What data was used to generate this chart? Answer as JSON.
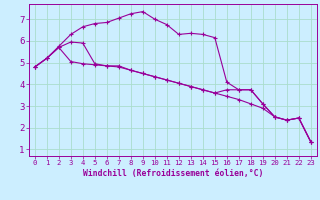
{
  "xlabel": "Windchill (Refroidissement éolien,°C)",
  "bg_color": "#cceeff",
  "line_color": "#990099",
  "grid_color": "#aaddcc",
  "xlim": [
    -0.5,
    23.5
  ],
  "ylim": [
    0.7,
    7.7
  ],
  "yticks": [
    1,
    2,
    3,
    4,
    5,
    6,
    7
  ],
  "xticks": [
    0,
    1,
    2,
    3,
    4,
    5,
    6,
    7,
    8,
    9,
    10,
    11,
    12,
    13,
    14,
    15,
    16,
    17,
    18,
    19,
    20,
    21,
    22,
    23
  ],
  "lines": [
    [
      0,
      4.8,
      1,
      5.2,
      2,
      5.75,
      3,
      6.3,
      4,
      6.65,
      5,
      6.8,
      6,
      6.85,
      7,
      7.05,
      8,
      7.25,
      9,
      7.35,
      10,
      7.0,
      11,
      6.75,
      12,
      6.3,
      13,
      6.35,
      14,
      6.3,
      15,
      6.15,
      16,
      4.1,
      17,
      3.75,
      18,
      3.75,
      19,
      3.1,
      20,
      2.5,
      21,
      2.35,
      22,
      2.45,
      23,
      1.35
    ],
    [
      0,
      4.8,
      1,
      5.2,
      2,
      5.7,
      3,
      5.95,
      4,
      5.9,
      5,
      4.95,
      6,
      4.85,
      7,
      4.85,
      8,
      4.65,
      9,
      4.5,
      10,
      4.35,
      11,
      4.2,
      12,
      4.05,
      13,
      3.9,
      14,
      3.75,
      15,
      3.6,
      16,
      3.75,
      17,
      3.75,
      18,
      3.75,
      19,
      3.1,
      20,
      2.5,
      21,
      2.35,
      22,
      2.45,
      23,
      1.35
    ],
    [
      0,
      4.8,
      1,
      5.2,
      2,
      5.7,
      3,
      5.05,
      4,
      4.95,
      5,
      4.9,
      6,
      4.85,
      7,
      4.8,
      8,
      4.65,
      9,
      4.5,
      10,
      4.35,
      11,
      4.2,
      12,
      4.05,
      13,
      3.9,
      14,
      3.75,
      15,
      3.6,
      16,
      3.45,
      17,
      3.3,
      18,
      3.1,
      19,
      2.9,
      20,
      2.5,
      21,
      2.35,
      22,
      2.45,
      23,
      1.35
    ]
  ],
  "xlabel_fontsize": 5.8,
  "tick_fontsize_x": 5.2,
  "tick_fontsize_y": 6.5
}
